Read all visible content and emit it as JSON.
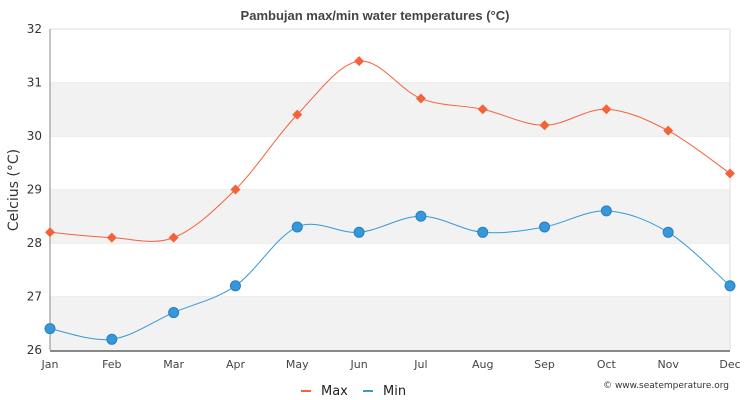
{
  "chart_data": {
    "type": "line",
    "title": "Pambujan max/min water temperatures (°C)",
    "xlabel": "",
    "ylabel": "Celcius (°C)",
    "ylim": [
      26,
      32
    ],
    "yticks": [
      "26",
      "27",
      "28",
      "29",
      "30",
      "31",
      "32"
    ],
    "categories": [
      "Jan",
      "Feb",
      "Mar",
      "Apr",
      "May",
      "Jun",
      "Jul",
      "Aug",
      "Sep",
      "Oct",
      "Nov",
      "Dec"
    ],
    "series": [
      {
        "name": "Max",
        "color": "#f4623a",
        "marker": "diamond",
        "values": [
          28.2,
          28.1,
          28.1,
          29.0,
          30.4,
          31.4,
          30.7,
          30.5,
          30.2,
          30.5,
          30.1,
          29.3
        ]
      },
      {
        "name": "Min",
        "color": "#3498db",
        "marker": "circle",
        "values": [
          26.4,
          26.2,
          26.7,
          27.2,
          28.3,
          28.2,
          28.5,
          28.2,
          28.3,
          28.6,
          28.2,
          27.2
        ]
      }
    ],
    "legend": "bottom-center",
    "grid": true
  },
  "credit": "© www.seatemperature.org"
}
